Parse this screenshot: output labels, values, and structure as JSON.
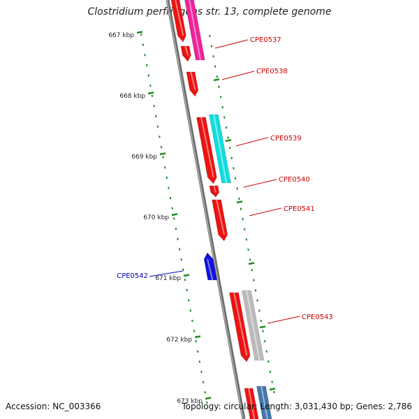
{
  "title": "Clostridium perfringens str. 13, complete genome",
  "footer": {
    "accession": "Accession: NC_003366",
    "summary": "Topology: circular; Length: 3,031,430 bp; Genes: 2,786"
  },
  "ticks": [
    {
      "label": "667 kbp"
    },
    {
      "label": "668 kbp"
    },
    {
      "label": "669 kbp"
    },
    {
      "label": "670 kbp"
    },
    {
      "label": "671 kbp"
    },
    {
      "label": "672 kbp"
    },
    {
      "label": "673 kbp"
    }
  ],
  "genes": [
    {
      "label": "CPE0537",
      "strand": "forward",
      "color": "#ee1111"
    },
    {
      "label": "CPE0538",
      "strand": "forward",
      "color": "#ee1111"
    },
    {
      "label": "CPE0539",
      "strand": "forward",
      "color": "#ee1111"
    },
    {
      "label": "CPE0540",
      "strand": "forward",
      "color": "#ee1111"
    },
    {
      "label": "CPE0541",
      "strand": "forward",
      "color": "#ee1111"
    },
    {
      "label": "CPE0542",
      "strand": "reverse",
      "color": "#1111dd"
    },
    {
      "label": "CPE0543",
      "strand": "forward",
      "color": "#ee1111"
    }
  ],
  "colors": {
    "backbone": "#8a8a8a",
    "tick": "#228822",
    "forward_label": "#cc0000",
    "reverse_label": "#0000bb",
    "cog_magenta": "#ee2299",
    "cog_cyan": "#11dddd",
    "cog_gray": "#bbbbbb",
    "cog_steelblue": "#4477aa"
  }
}
